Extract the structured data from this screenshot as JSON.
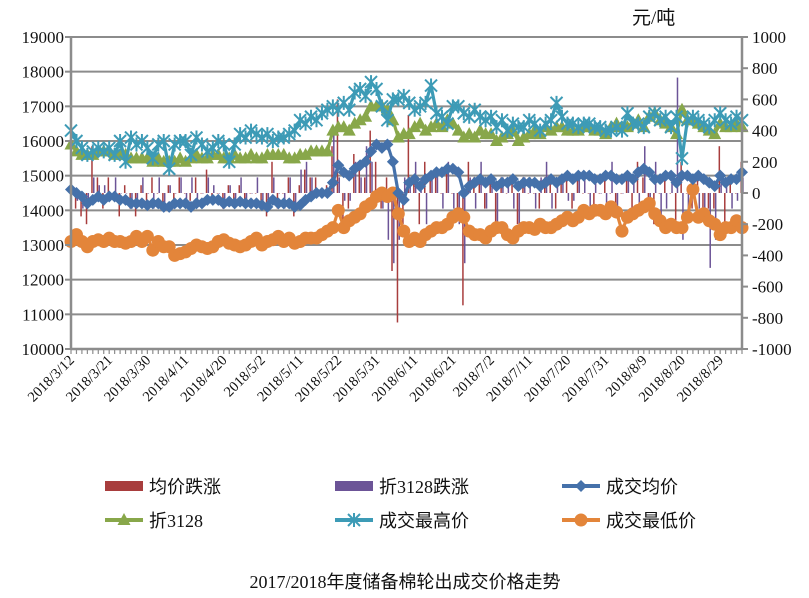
{
  "chart_data": {
    "type": "line",
    "title": "2017/2018年度储备棉轮出成交价格走势",
    "unit_label": "元/吨",
    "y_left": {
      "min": 10000,
      "max": 19000,
      "step": 1000
    },
    "y_right": {
      "min": -1000,
      "max": 1000,
      "step": 200
    },
    "grid": true,
    "legend_position": "bottom",
    "x_tick_labels": [
      "2018/3/12",
      "2018/3/21",
      "2018/3/30",
      "2018/4/11",
      "2018/4/20",
      "2018/5/2",
      "2018/5/11",
      "2018/5/22",
      "2018/5/31",
      "2018/6/11",
      "2018/6/21",
      "2018/7/2",
      "2018/7/11",
      "2018/7/20",
      "2018/7/31",
      "2018/8/9",
      "2018/8/20",
      "2018/8/29"
    ],
    "x_label_every": 7,
    "colors": {
      "red": "#A83D3D",
      "purple": "#6C5497",
      "blue": "#4571AA",
      "green": "#88A74A",
      "cyan": "#3D9BB6",
      "orange": "#E3853A",
      "axis": "#8C8C8C",
      "grid": "#8C8C8C"
    },
    "bar_series": [
      {
        "name": "均价跌涨",
        "color": "#A83D3D",
        "axis": "right",
        "values": [
          0,
          -100,
          -150,
          -200,
          300,
          100,
          -100,
          100,
          0,
          -150,
          50,
          -100,
          -150,
          50,
          -50,
          100,
          0,
          -100,
          50,
          -100,
          100,
          0,
          -50,
          100,
          0,
          150,
          -50,
          0,
          -100,
          50,
          -50,
          50,
          -50,
          0,
          0,
          -100,
          -150,
          200,
          -100,
          0,
          100,
          -150,
          50,
          150,
          100,
          100,
          0,
          50,
          300,
          600,
          -200,
          -100,
          250,
          150,
          100,
          400,
          200,
          -100,
          100,
          -500,
          -830,
          -200,
          500,
          100,
          -200,
          200,
          100,
          100,
          0,
          150,
          0,
          -100,
          -720,
          200,
          100,
          100,
          -100,
          100,
          -200,
          100,
          0,
          100,
          -200,
          100,
          0,
          0,
          -100,
          100,
          100,
          -100,
          100,
          100,
          -100,
          100,
          0,
          0,
          -100,
          0,
          100,
          0,
          -100,
          0,
          100,
          -100,
          200,
          100,
          -100,
          -200,
          0,
          100,
          0,
          -200,
          200,
          0,
          -100,
          100,
          -100,
          -100,
          -100,
          300,
          -200,
          100,
          0,
          200
        ]
      },
      {
        "name": "折3128跌涨",
        "color": "#6C5497",
        "axis": "right",
        "values": [
          0,
          -50,
          -100,
          -50,
          100,
          50,
          50,
          -50,
          100,
          0,
          0,
          -100,
          -50,
          100,
          0,
          -100,
          100,
          -100,
          50,
          0,
          100,
          -50,
          100,
          -50,
          0,
          100,
          50,
          0,
          -50,
          50,
          -50,
          100,
          -50,
          0,
          100,
          -50,
          -100,
          100,
          0,
          -100,
          100,
          -100,
          150,
          200,
          100,
          0,
          0,
          0,
          400,
          100,
          -50,
          -50,
          200,
          100,
          300,
          200,
          0,
          -100,
          -300,
          -450,
          -300,
          100,
          100,
          200,
          100,
          -200,
          100,
          150,
          -100,
          200,
          -100,
          -200,
          -450,
          100,
          -100,
          200,
          -100,
          100,
          -200,
          100,
          100,
          -100,
          -250,
          100,
          100,
          -100,
          100,
          200,
          -100,
          100,
          100,
          -50,
          -50,
          100,
          100,
          -100,
          100,
          0,
          -100,
          200,
          -100,
          0,
          100,
          100,
          -100,
          300,
          -100,
          200,
          -200,
          -100,
          100,
          740,
          -300,
          -100,
          100,
          -100,
          -200,
          -480,
          -300,
          100,
          100,
          -100,
          -50,
          100,
          200,
          -100
        ]
      }
    ],
    "line_series": [
      {
        "name": "成交均价",
        "color": "#4571AA",
        "marker": "diamond",
        "axis": "left",
        "values": [
          14600,
          14500,
          14400,
          14200,
          14300,
          14400,
          14300,
          14400,
          14400,
          14300,
          14300,
          14200,
          14200,
          14200,
          14150,
          14200,
          14200,
          14100,
          14100,
          14200,
          14200,
          14200,
          14100,
          14200,
          14200,
          14300,
          14300,
          14300,
          14200,
          14250,
          14200,
          14250,
          14200,
          14200,
          14200,
          14150,
          14100,
          14300,
          14200,
          14200,
          14200,
          14100,
          14150,
          14300,
          14400,
          14500,
          14500,
          14500,
          14800,
          15300,
          15100,
          15000,
          15200,
          15300,
          15400,
          15700,
          15900,
          15800,
          15900,
          15400,
          14500,
          14300,
          14800,
          14900,
          14700,
          14900,
          15000,
          15100,
          15100,
          15200,
          15200,
          15100,
          14500,
          14700,
          14800,
          14900,
          14800,
          14900,
          14700,
          14800,
          14800,
          14900,
          14700,
          14800,
          14800,
          14800,
          14700,
          14800,
          14900,
          14800,
          14900,
          15000,
          14900,
          15000,
          15000,
          15000,
          14900,
          14900,
          15000,
          15000,
          14900,
          14900,
          15000,
          14900,
          15100,
          15200,
          15100,
          14900,
          14900,
          15000,
          15000,
          14800,
          15000,
          15000,
          14900,
          15000,
          14900,
          14800,
          14700,
          15000,
          14800,
          14900,
          14900,
          15100
        ]
      },
      {
        "name": "折3128",
        "color": "#88A74A",
        "marker": "triangle",
        "axis": "left",
        "values": [
          15900,
          15700,
          15600,
          15600,
          15600,
          15700,
          15700,
          15700,
          15600,
          15600,
          15600,
          15500,
          15500,
          15500,
          15500,
          15400,
          15500,
          15400,
          15400,
          15400,
          15500,
          15400,
          15500,
          15600,
          15500,
          15500,
          15600,
          15600,
          15500,
          15500,
          15600,
          15500,
          15500,
          15600,
          15500,
          15500,
          15600,
          15600,
          15600,
          15600,
          15500,
          15500,
          15600,
          15600,
          15700,
          15700,
          15700,
          15700,
          16300,
          16400,
          16400,
          16300,
          16500,
          16600,
          16700,
          17000,
          17000,
          17000,
          16900,
          16600,
          16100,
          16200,
          16200,
          16400,
          16500,
          16300,
          16400,
          16500,
          16400,
          16600,
          16500,
          16300,
          16100,
          16200,
          16100,
          16300,
          16200,
          16200,
          16000,
          16100,
          16200,
          16300,
          16000,
          16100,
          16200,
          16300,
          16200,
          16400,
          16300,
          16400,
          16400,
          16300,
          16300,
          16300,
          16400,
          16400,
          16300,
          16300,
          16200,
          16400,
          16500,
          16400,
          16400,
          16500,
          16600,
          16400,
          16700,
          16800,
          16600,
          16500,
          16400,
          16200,
          16900,
          16600,
          16600,
          16500,
          16400,
          16300,
          16200,
          16500,
          16400,
          16400,
          16500,
          16400
        ]
      },
      {
        "name": "成交最高价",
        "color": "#3D9BB6",
        "marker": "asterisk",
        "axis": "left",
        "values": [
          16300,
          16000,
          15800,
          15600,
          15700,
          15800,
          15700,
          15800,
          15600,
          16000,
          15400,
          16100,
          15900,
          16000,
          15800,
          15500,
          15900,
          16000,
          15200,
          15900,
          16000,
          16000,
          15600,
          16100,
          15900,
          15700,
          15800,
          16000,
          15900,
          15400,
          15900,
          16200,
          16100,
          16300,
          16200,
          16100,
          16200,
          16000,
          16100,
          16100,
          16200,
          16300,
          16600,
          16500,
          16700,
          16600,
          16800,
          16900,
          17000,
          16900,
          17100,
          16900,
          17400,
          17500,
          17300,
          17700,
          17500,
          17000,
          16600,
          17200,
          17200,
          17300,
          17100,
          16900,
          17000,
          17100,
          17600,
          16800,
          16700,
          16500,
          17000,
          17000,
          16800,
          16700,
          16900,
          16700,
          16600,
          16700,
          16400,
          16600,
          16300,
          16500,
          16400,
          16400,
          16600,
          16500,
          16300,
          16500,
          16600,
          17100,
          16700,
          16500,
          16500,
          16400,
          16500,
          16500,
          16400,
          16400,
          16300,
          16300,
          16400,
          16300,
          16800,
          16500,
          16500,
          16400,
          16700,
          16800,
          16600,
          16700,
          16400,
          16700,
          15500,
          16600,
          16700,
          16600,
          16500,
          16400,
          16600,
          16800,
          16600,
          16500,
          16700,
          16600
        ]
      },
      {
        "name": "成交最低价",
        "color": "#E3853A",
        "marker": "circle",
        "axis": "left",
        "values": [
          13100,
          13300,
          13100,
          12950,
          13100,
          13150,
          13100,
          13200,
          13100,
          13100,
          13050,
          13100,
          13250,
          13100,
          13250,
          12850,
          13100,
          12950,
          12950,
          12700,
          12750,
          12800,
          12900,
          13000,
          12950,
          12900,
          12950,
          13100,
          13150,
          13050,
          13000,
          12950,
          13000,
          13100,
          13200,
          13000,
          13100,
          13150,
          13250,
          13100,
          13200,
          13050,
          13100,
          13200,
          13200,
          13200,
          13300,
          13400,
          13500,
          14000,
          13500,
          13700,
          13800,
          13900,
          14100,
          14200,
          14400,
          14500,
          14400,
          14500,
          13900,
          13400,
          13100,
          13200,
          13100,
          13300,
          13400,
          13500,
          13500,
          13600,
          13800,
          13900,
          13800,
          13400,
          13300,
          13300,
          13200,
          13400,
          13500,
          13500,
          13300,
          13200,
          13400,
          13500,
          13500,
          13450,
          13600,
          13500,
          13500,
          13600,
          13700,
          13800,
          13700,
          13800,
          14000,
          13900,
          14000,
          14000,
          13900,
          14100,
          13950,
          13400,
          13800,
          13900,
          14000,
          14100,
          14200,
          13900,
          13700,
          13500,
          13600,
          13500,
          13500,
          13800,
          14600,
          13800,
          13900,
          13700,
          13600,
          13300,
          13500,
          13500,
          13700,
          13500
        ]
      }
    ],
    "legend": [
      "均价跌涨",
      "折3128跌涨",
      "成交均价",
      "折3128",
      "成交最高价",
      "成交最低价"
    ]
  }
}
